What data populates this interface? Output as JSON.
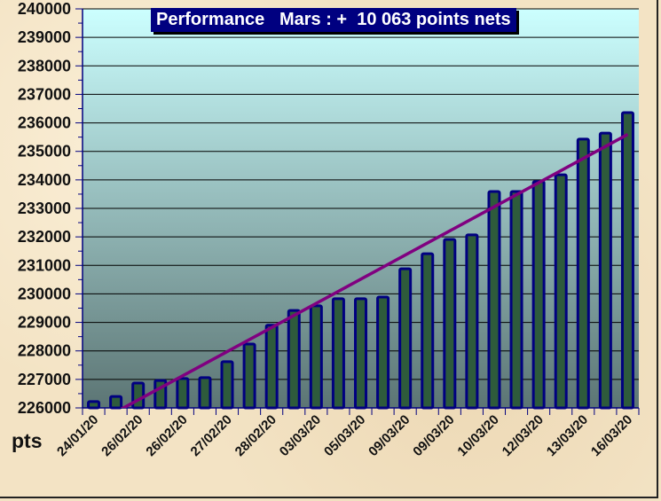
{
  "chart_data": {
    "type": "bar",
    "title": "Performance   Mars : +  10 063 points nets",
    "ylabel": "pts",
    "xlabel": "",
    "ylim": [
      226000,
      240000
    ],
    "ytick_step": 1000,
    "grid": true,
    "trendline": "linear",
    "categories": [
      "24/01/20",
      "",
      "26/02/20",
      "",
      "26/02/20",
      "",
      "27/02/20",
      "",
      "28/02/20",
      "",
      "03/03/20",
      "",
      "05/03/20",
      "",
      "09/03/20",
      "",
      "09/03/20",
      "",
      "10/03/20",
      "",
      "12/03/20",
      "",
      "13/03/20",
      "",
      "16/03/20"
    ],
    "values": [
      226220,
      226400,
      226870,
      226960,
      227030,
      227060,
      227620,
      228240,
      228900,
      229420,
      229580,
      229830,
      229830,
      229890,
      230880,
      231410,
      231910,
      232070,
      233590,
      233590,
      233940,
      234180,
      235430,
      235640,
      236360
    ],
    "colors": {
      "bar_fill": "#2e5b3c",
      "bar_border": "#000080",
      "trendline": "#800080",
      "title_bg": "#000080",
      "plot_top": "#ccffff",
      "plot_bottom": "#5c7574"
    }
  }
}
